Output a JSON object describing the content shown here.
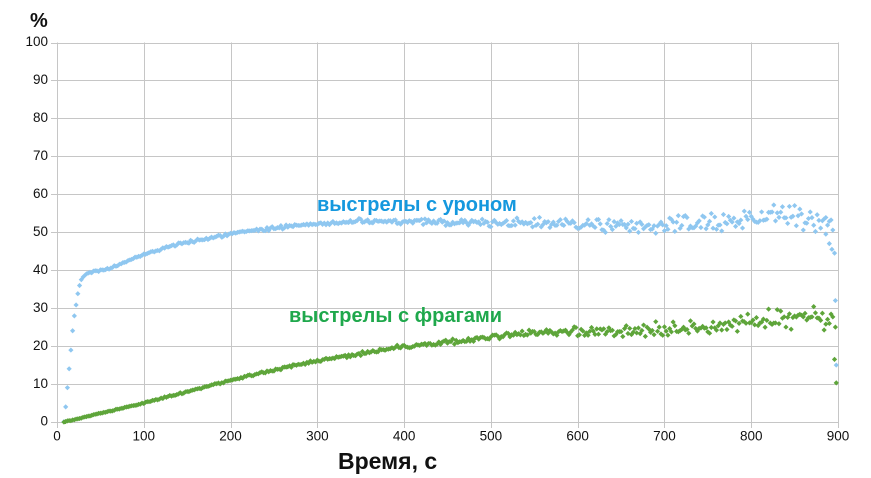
{
  "page": {
    "background": "#FFFFFF"
  },
  "chart_data": {
    "type": "scatter",
    "title": "",
    "xlabel": "Время, с",
    "ylabel": "%",
    "xlim": [
      0,
      900
    ],
    "ylim": [
      0,
      100
    ],
    "x_ticks": [
      0,
      100,
      200,
      300,
      400,
      500,
      600,
      700,
      800,
      900
    ],
    "y_ticks": [
      0,
      10,
      20,
      30,
      40,
      50,
      60,
      70,
      80,
      90,
      100
    ],
    "grid": true,
    "legend_position": "inline-labels",
    "marker": "diamond",
    "colors": {
      "grid": "#C6C6C6",
      "axis": "#C6C6C6",
      "tick_text": "#111111"
    },
    "render": {
      "sample_step_s": 2,
      "noise_seed": 42,
      "marker_half_px": 2.6
    },
    "series": [
      {
        "name": "выстрелы с уроном",
        "point_color": "#8FC7F0",
        "label_color": "#1598DE",
        "t_range": [
          8,
          894
        ],
        "trend": [
          [
            8,
            0
          ],
          [
            10,
            4
          ],
          [
            12,
            9
          ],
          [
            14,
            14
          ],
          [
            16,
            19
          ],
          [
            18,
            24
          ],
          [
            20,
            28
          ],
          [
            22,
            31
          ],
          [
            24,
            34
          ],
          [
            26,
            36
          ],
          [
            28,
            37.5
          ],
          [
            32,
            38.8
          ],
          [
            36,
            39.3
          ],
          [
            45,
            39.8
          ],
          [
            60,
            40.3
          ],
          [
            70,
            41.3
          ],
          [
            80,
            42.3
          ],
          [
            90,
            43.3
          ],
          [
            100,
            44.2
          ],
          [
            120,
            45.6
          ],
          [
            140,
            46.8
          ],
          [
            160,
            47.8
          ],
          [
            180,
            48.7
          ],
          [
            200,
            49.5
          ],
          [
            220,
            50.2
          ],
          [
            240,
            50.8
          ],
          [
            260,
            51.4
          ],
          [
            280,
            51.9
          ],
          [
            300,
            52.2
          ],
          [
            330,
            52.6
          ],
          [
            360,
            52.8
          ],
          [
            400,
            52.8
          ],
          [
            450,
            52.6
          ],
          [
            500,
            52.5
          ],
          [
            550,
            52.4
          ],
          [
            600,
            52.1
          ],
          [
            630,
            51.7
          ],
          [
            660,
            51.4
          ],
          [
            690,
            51.6
          ],
          [
            720,
            51.9
          ],
          [
            750,
            52.3
          ],
          [
            780,
            53.3
          ],
          [
            810,
            54.2
          ],
          [
            840,
            54.5
          ],
          [
            865,
            54.3
          ],
          [
            883,
            53.2
          ],
          [
            894,
            51.5
          ]
        ],
        "noise": [
          [
            8,
            0.15
          ],
          [
            100,
            0.3
          ],
          [
            200,
            0.35
          ],
          [
            300,
            0.45
          ],
          [
            400,
            0.7
          ],
          [
            500,
            0.95
          ],
          [
            550,
            1.15
          ],
          [
            600,
            1.5
          ],
          [
            650,
            1.8
          ],
          [
            700,
            1.9
          ],
          [
            750,
            2.1
          ],
          [
            800,
            2.4
          ],
          [
            850,
            2.7
          ],
          [
            894,
            2.7
          ]
        ],
        "outliers": [
          [
            886,
            49.5
          ],
          [
            890,
            47
          ],
          [
            893,
            45.5
          ],
          [
            896,
            44.5
          ],
          [
            897,
            32
          ],
          [
            898,
            15
          ]
        ]
      },
      {
        "name": "выстрелы с фрагами",
        "point_color": "#5EA53A",
        "label_color": "#1FA84C",
        "t_range": [
          8,
          894
        ],
        "trend": [
          [
            8,
            0
          ],
          [
            20,
            0.6
          ],
          [
            40,
            1.8
          ],
          [
            60,
            2.8
          ],
          [
            80,
            3.9
          ],
          [
            100,
            5
          ],
          [
            130,
            6.8
          ],
          [
            160,
            8.6
          ],
          [
            200,
            11
          ],
          [
            240,
            13.2
          ],
          [
            280,
            15.2
          ],
          [
            300,
            16.1
          ],
          [
            330,
            17.3
          ],
          [
            360,
            18.4
          ],
          [
            400,
            20
          ],
          [
            440,
            20.8
          ],
          [
            480,
            21.8
          ],
          [
            520,
            23
          ],
          [
            560,
            23.6
          ],
          [
            600,
            23.8
          ],
          [
            640,
            23.9
          ],
          [
            680,
            24
          ],
          [
            720,
            24.3
          ],
          [
            760,
            25
          ],
          [
            800,
            26
          ],
          [
            830,
            27
          ],
          [
            855,
            27.8
          ],
          [
            875,
            28
          ],
          [
            885,
            27.5
          ],
          [
            894,
            26.5
          ]
        ],
        "noise": [
          [
            8,
            0.08
          ],
          [
            100,
            0.15
          ],
          [
            200,
            0.25
          ],
          [
            300,
            0.35
          ],
          [
            400,
            0.5
          ],
          [
            500,
            0.7
          ],
          [
            560,
            0.95
          ],
          [
            620,
            1.25
          ],
          [
            680,
            1.55
          ],
          [
            740,
            1.85
          ],
          [
            800,
            2.2
          ],
          [
            850,
            2.5
          ],
          [
            894,
            2.5
          ]
        ],
        "outliers": [
          [
            897,
            25
          ],
          [
            896,
            16.5
          ],
          [
            898,
            10.3
          ]
        ]
      }
    ]
  }
}
